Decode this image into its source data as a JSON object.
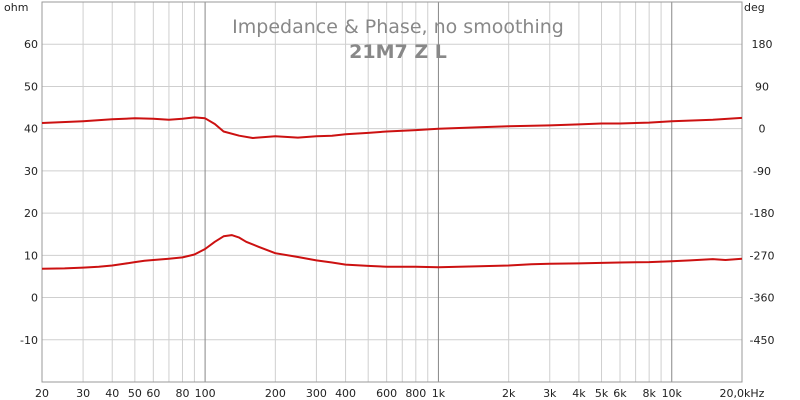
{
  "chart_data": {
    "type": "line",
    "title": "Impedance & Phase, no smoothing",
    "subtitle": "21M7 Z L",
    "left_axis": {
      "unit": "ohm",
      "range": [
        -20,
        70
      ],
      "ticks": [
        60,
        50,
        40,
        30,
        20,
        10,
        0,
        -10
      ],
      "tick_labels": [
        "60",
        "50",
        "40",
        "30",
        "20",
        "10",
        "0",
        "-10"
      ]
    },
    "right_axis": {
      "unit": "deg",
      "range": [
        -540,
        270
      ],
      "ticks": [
        180,
        90,
        0,
        -90,
        -180,
        -270,
        -360,
        -450
      ],
      "tick_labels": [
        "180",
        "90",
        "0",
        "-90",
        "-180",
        "-270",
        "-360",
        "-450"
      ]
    },
    "x_axis": {
      "scale": "log",
      "range": [
        20,
        20000
      ],
      "ticks": [
        20,
        30,
        40,
        50,
        60,
        80,
        100,
        200,
        300,
        400,
        600,
        800,
        1000,
        2000,
        3000,
        4000,
        5000,
        6000,
        8000,
        10000,
        20000
      ],
      "tick_labels": [
        "20",
        "30",
        "40",
        "50",
        "60",
        "80",
        "100",
        "200",
        "300",
        "400",
        "600",
        "800",
        "1k",
        "2k",
        "3k",
        "4k",
        "5k",
        "6k",
        "8k",
        "10k",
        "20,0kHz"
      ],
      "major": [
        100,
        1000,
        10000
      ]
    },
    "grid": true,
    "colors": {
      "trace": "#cc1111",
      "grid": "#cfcfcf",
      "grid_major": "#888888",
      "frame": "#999999",
      "title": "#888888"
    },
    "series": [
      {
        "axis": "left",
        "points": [
          [
            20,
            6.8
          ],
          [
            25,
            6.9
          ],
          [
            30,
            7.1
          ],
          [
            35,
            7.3
          ],
          [
            40,
            7.6
          ],
          [
            45,
            8.0
          ],
          [
            50,
            8.4
          ],
          [
            55,
            8.7
          ],
          [
            60,
            8.9
          ],
          [
            70,
            9.2
          ],
          [
            80,
            9.5
          ],
          [
            90,
            10.2
          ],
          [
            100,
            11.5
          ],
          [
            110,
            13.2
          ],
          [
            120,
            14.5
          ],
          [
            130,
            14.8
          ],
          [
            140,
            14.2
          ],
          [
            150,
            13.2
          ],
          [
            170,
            12.0
          ],
          [
            200,
            10.5
          ],
          [
            250,
            9.6
          ],
          [
            300,
            8.8
          ],
          [
            350,
            8.3
          ],
          [
            400,
            7.8
          ],
          [
            500,
            7.5
          ],
          [
            600,
            7.3
          ],
          [
            800,
            7.3
          ],
          [
            1000,
            7.2
          ],
          [
            1500,
            7.4
          ],
          [
            2000,
            7.6
          ],
          [
            2500,
            7.9
          ],
          [
            3000,
            8.0
          ],
          [
            4000,
            8.1
          ],
          [
            5000,
            8.2
          ],
          [
            6000,
            8.3
          ],
          [
            8000,
            8.4
          ],
          [
            10000,
            8.6
          ],
          [
            12000,
            8.8
          ],
          [
            15000,
            9.1
          ],
          [
            17000,
            8.9
          ],
          [
            20000,
            9.2
          ]
        ]
      },
      {
        "axis": "right",
        "points": [
          [
            20,
            12
          ],
          [
            30,
            16
          ],
          [
            40,
            20
          ],
          [
            50,
            22
          ],
          [
            60,
            21
          ],
          [
            70,
            19
          ],
          [
            80,
            21
          ],
          [
            90,
            24
          ],
          [
            100,
            22
          ],
          [
            110,
            10
          ],
          [
            120,
            -6
          ],
          [
            140,
            -15
          ],
          [
            160,
            -20
          ],
          [
            200,
            -16
          ],
          [
            250,
            -19
          ],
          [
            300,
            -16
          ],
          [
            350,
            -15
          ],
          [
            400,
            -12
          ],
          [
            500,
            -9
          ],
          [
            600,
            -6
          ],
          [
            800,
            -3
          ],
          [
            1000,
            0
          ],
          [
            1500,
            3
          ],
          [
            2000,
            5
          ],
          [
            3000,
            7
          ],
          [
            4000,
            9
          ],
          [
            5000,
            11
          ],
          [
            6000,
            11
          ],
          [
            8000,
            13
          ],
          [
            10000,
            16
          ],
          [
            15000,
            19
          ],
          [
            20000,
            23
          ]
        ]
      }
    ]
  }
}
